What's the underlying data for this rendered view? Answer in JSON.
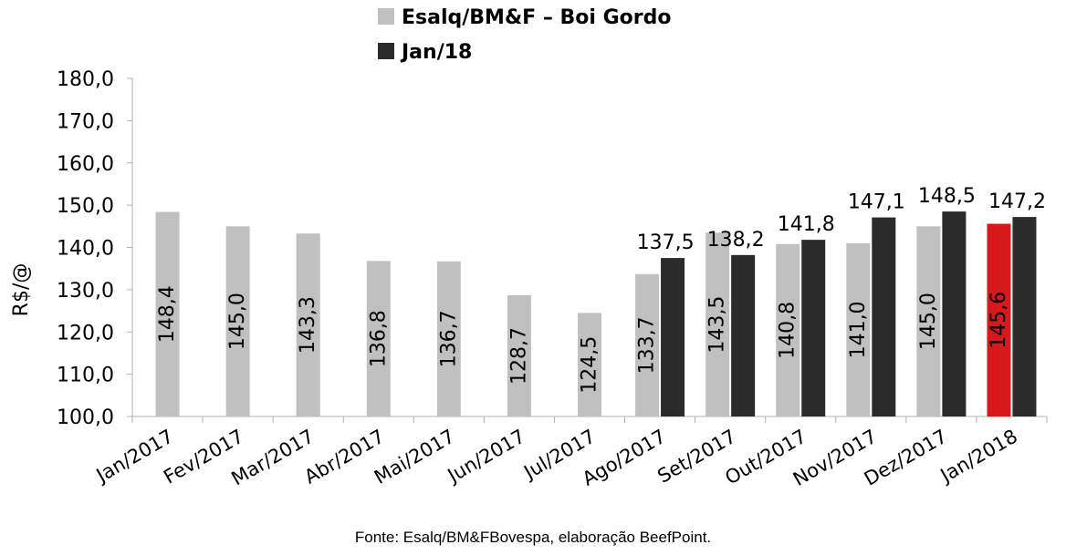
{
  "chart_data": {
    "type": "bar",
    "ylabel": "R$/@",
    "ylim": [
      100,
      180
    ],
    "yticks": [
      "100,0",
      "110,0",
      "120,0",
      "130,0",
      "140,0",
      "150,0",
      "160,0",
      "170,0",
      "180,0"
    ],
    "ytick_values": [
      100,
      110,
      120,
      130,
      140,
      150,
      160,
      170,
      180
    ],
    "grid": false,
    "legend_position": "top",
    "categories": [
      "Jan/2017",
      "Fev/2017",
      "Mar/2017",
      "Abr/2017",
      "Mai/2017",
      "Jun/2017",
      "Jul/2017",
      "Ago/2017",
      "Set/2017",
      "Out/2017",
      "Nov/2017",
      "Dez/2017",
      "Jan/2018"
    ],
    "series": [
      {
        "name": "Esalq/BM&F – Boi Gordo",
        "color": "#c0c0c0",
        "highlight_color": "#d7191c",
        "highlight_index": 12,
        "values": [
          148.4,
          145.0,
          143.3,
          136.8,
          136.7,
          128.7,
          124.5,
          133.7,
          143.5,
          140.8,
          141.0,
          145.0,
          145.6
        ],
        "labels": [
          "148,4",
          "145,0",
          "143,3",
          "136,8",
          "136,7",
          "128,7",
          "124,5",
          "133,7",
          "143,5",
          "140,8",
          "141,0",
          "145,0",
          "145,6"
        ]
      },
      {
        "name": "Jan/18",
        "color": "#2b2b2b",
        "values": [
          null,
          null,
          null,
          null,
          null,
          null,
          null,
          137.5,
          138.2,
          141.8,
          147.1,
          148.5,
          147.2
        ],
        "labels": [
          null,
          null,
          null,
          null,
          null,
          null,
          null,
          "137,5",
          "138,2",
          "141,8",
          "147,1",
          "148,5",
          "147,2"
        ]
      }
    ]
  },
  "source_text": "Fonte: Esalq/BM&FBovespa, elaboração BeefPoint."
}
